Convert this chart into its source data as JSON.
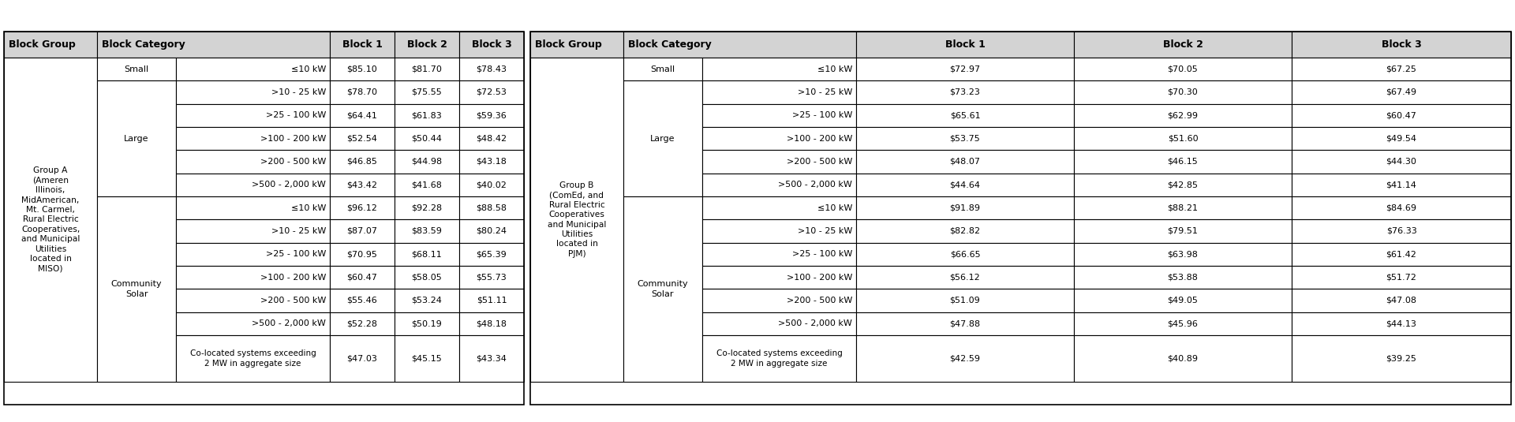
{
  "header_bg": "#d3d3d3",
  "font_size": 8.0,
  "header_font_size": 9.0,
  "group_a_label": "Group A\n(Ameren\nIllinois,\nMidAmerican,\nMt. Carmel,\nRural Electric\nCooperatives,\nand Municipal\nUtilities\nlocated in\nMISO)",
  "group_b_label": "Group B\n(ComEd, and\nRural Electric\nCooperatives\nand Municipal\nUtilities\nlocated in\nPJM)",
  "table_a": {
    "small_size": "≤10 kW",
    "small_b1": "$85.10",
    "small_b2": "$81.70",
    "small_b3": "$78.43",
    "large_rows": [
      [
        ">10 - 25 kW",
        "$78.70",
        "$75.55",
        "$72.53"
      ],
      [
        ">25 - 100 kW",
        "$64.41",
        "$61.83",
        "$59.36"
      ],
      [
        ">100 - 200 kW",
        "$52.54",
        "$50.44",
        "$48.42"
      ],
      [
        ">200 - 500 kW",
        "$46.85",
        "$44.98",
        "$43.18"
      ],
      [
        ">500 - 2,000 kW",
        "$43.42",
        "$41.68",
        "$40.02"
      ]
    ],
    "community_rows": [
      [
        "≤10 kW",
        "$96.12",
        "$92.28",
        "$88.58"
      ],
      [
        ">10 - 25 kW",
        "$87.07",
        "$83.59",
        "$80.24"
      ],
      [
        ">25 - 100 kW",
        "$70.95",
        "$68.11",
        "$65.39"
      ],
      [
        ">100 - 200 kW",
        "$60.47",
        "$58.05",
        "$55.73"
      ],
      [
        ">200 - 500 kW",
        "$55.46",
        "$53.24",
        "$51.11"
      ],
      [
        ">500 - 2,000 kW",
        "$52.28",
        "$50.19",
        "$48.18"
      ],
      [
        "Co-located systems exceeding\n2 MW in aggregate size",
        "$47.03",
        "$45.15",
        "$43.34"
      ]
    ]
  },
  "table_b": {
    "small_size": "≤10 kW",
    "small_b1": "$72.97",
    "small_b2": "$70.05",
    "small_b3": "$67.25",
    "large_rows": [
      [
        ">10 - 25 kW",
        "$73.23",
        "$70.30",
        "$67.49"
      ],
      [
        ">25 - 100 kW",
        "$65.61",
        "$62.99",
        "$60.47"
      ],
      [
        ">100 - 200 kW",
        "$53.75",
        "$51.60",
        "$49.54"
      ],
      [
        ">200 - 500 kW",
        "$48.07",
        "$46.15",
        "$44.30"
      ],
      [
        ">500 - 2,000 kW",
        "$44.64",
        "$42.85",
        "$41.14"
      ]
    ],
    "community_rows": [
      [
        "≤10 kW",
        "$91.89",
        "$88.21",
        "$84.69"
      ],
      [
        ">10 - 25 kW",
        "$82.82",
        "$79.51",
        "$76.33"
      ],
      [
        ">25 - 100 kW",
        "$66.65",
        "$63.98",
        "$61.42"
      ],
      [
        ">100 - 200 kW",
        "$56.12",
        "$53.88",
        "$51.72"
      ],
      [
        ">200 - 500 kW",
        "$51.09",
        "$49.05",
        "$47.08"
      ],
      [
        ">500 - 2,000 kW",
        "$47.88",
        "$45.96",
        "$44.13"
      ],
      [
        "Co-located systems exceeding\n2 MW in aggregate size",
        "$42.59",
        "$40.89",
        "$39.25"
      ]
    ]
  }
}
